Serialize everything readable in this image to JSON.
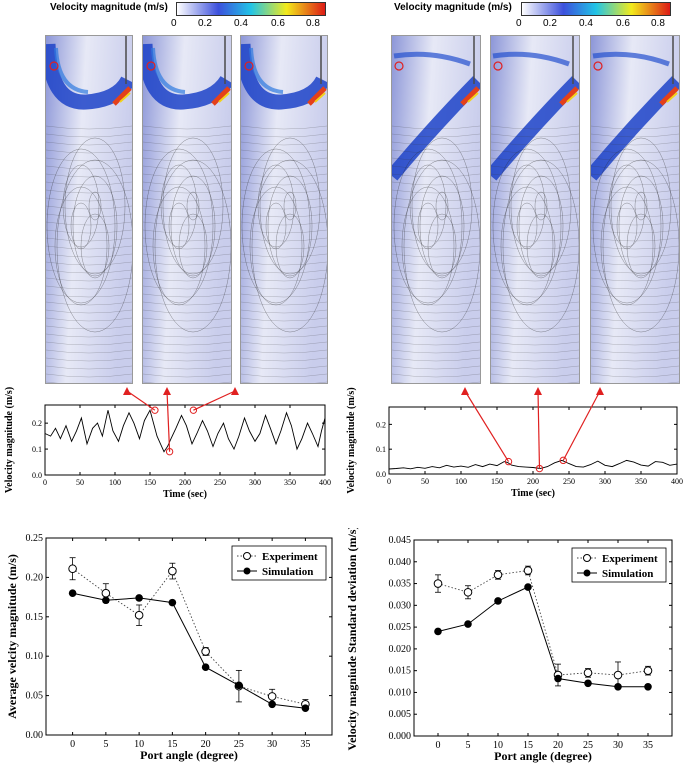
{
  "colorbars": [
    {
      "title": "Velocity magnitude (m/s)",
      "ticks": [
        "0",
        "0.2",
        "0.4",
        "0.6",
        "0.8"
      ],
      "stops": [
        "#ffffff",
        "#3c50dc",
        "#22c4e6",
        "#f2ea1c",
        "#dd1b16"
      ]
    },
    {
      "title": "Velocity magnitude (m/s)",
      "ticks": [
        "0",
        "0.2",
        "0.4",
        "0.6",
        "0.8"
      ],
      "stops": [
        "#ffffff",
        "#3c50dc",
        "#22c4e6",
        "#f2ea1c",
        "#dd1b16"
      ]
    }
  ],
  "chart_data": [
    {
      "type": "line",
      "xlabel": "Time (sec)",
      "ylabel": "Velocity magnitude (m/s)",
      "xlim": [
        0,
        400
      ],
      "ylim": [
        0,
        0.27
      ],
      "xticks": [
        "0",
        "50",
        "100",
        "150",
        "200",
        "250",
        "300",
        "350",
        "400"
      ],
      "yticks": [
        "0.0",
        "0.1",
        "0.2"
      ],
      "x": [
        0,
        8,
        15,
        22,
        30,
        38,
        45,
        52,
        60,
        68,
        75,
        82,
        90,
        97,
        105,
        112,
        120,
        127,
        135,
        142,
        150,
        155,
        160,
        165,
        170,
        175,
        180,
        187,
        195,
        202,
        210,
        217,
        225,
        232,
        240,
        247,
        255,
        262,
        270,
        277,
        285,
        292,
        300,
        307,
        315,
        322,
        330,
        337,
        345,
        352,
        360,
        367,
        375,
        382,
        390,
        395,
        400
      ],
      "y": [
        0.16,
        0.15,
        0.18,
        0.14,
        0.19,
        0.13,
        0.17,
        0.22,
        0.12,
        0.18,
        0.2,
        0.15,
        0.25,
        0.17,
        0.13,
        0.19,
        0.24,
        0.2,
        0.14,
        0.21,
        0.25,
        0.2,
        0.15,
        0.12,
        0.09,
        0.11,
        0.14,
        0.18,
        0.23,
        0.19,
        0.12,
        0.16,
        0.21,
        0.17,
        0.11,
        0.16,
        0.2,
        0.14,
        0.1,
        0.15,
        0.22,
        0.17,
        0.13,
        0.16,
        0.23,
        0.18,
        0.12,
        0.17,
        0.24,
        0.19,
        0.1,
        0.14,
        0.2,
        0.16,
        0.11,
        0.17,
        0.22
      ],
      "markers": [
        {
          "x": 157,
          "y": 0.25
        },
        {
          "x": 178,
          "y": 0.09
        },
        {
          "x": 212,
          "y": 0.25
        }
      ]
    },
    {
      "type": "line",
      "xlabel": "Time (sec)",
      "ylabel": "Velocity magnitude (m/s)",
      "xlim": [
        0,
        400
      ],
      "ylim": [
        0,
        0.27
      ],
      "xticks": [
        "0",
        "50",
        "100",
        "150",
        "200",
        "250",
        "300",
        "350",
        "400"
      ],
      "yticks": [
        "0.0",
        "0.1",
        "0.2"
      ],
      "x": [
        0,
        10,
        20,
        30,
        40,
        50,
        60,
        70,
        80,
        90,
        100,
        110,
        120,
        130,
        140,
        150,
        160,
        165,
        170,
        180,
        190,
        200,
        210,
        220,
        230,
        240,
        250,
        260,
        270,
        280,
        290,
        300,
        310,
        320,
        330,
        340,
        350,
        360,
        370,
        380,
        390,
        400
      ],
      "y": [
        0.02,
        0.022,
        0.025,
        0.021,
        0.027,
        0.023,
        0.03,
        0.025,
        0.035,
        0.028,
        0.032,
        0.027,
        0.038,
        0.03,
        0.04,
        0.034,
        0.05,
        0.046,
        0.036,
        0.03,
        0.028,
        0.026,
        0.022,
        0.03,
        0.045,
        0.055,
        0.042,
        0.03,
        0.028,
        0.038,
        0.052,
        0.035,
        0.03,
        0.042,
        0.055,
        0.048,
        0.036,
        0.032,
        0.05,
        0.047,
        0.035,
        0.04
      ],
      "markers": [
        {
          "x": 166,
          "y": 0.05
        },
        {
          "x": 209,
          "y": 0.022
        },
        {
          "x": 242,
          "y": 0.055
        }
      ]
    },
    {
      "type": "line",
      "xlabel": "Port angle (degree)",
      "ylabel": "Average velcity magnitude (m/s)",
      "xlim": [
        -4,
        39
      ],
      "ylim": [
        0,
        0.25
      ],
      "xticks": [
        "0",
        "5",
        "10",
        "15",
        "20",
        "25",
        "30",
        "35"
      ],
      "yticks": [
        "0.00",
        "0.05",
        "0.10",
        "0.15",
        "0.20",
        "0.25"
      ],
      "legend_position": "top-right",
      "categories": [
        0,
        5,
        10,
        15,
        20,
        25,
        30,
        35
      ],
      "series": [
        {
          "name": "Experiment",
          "values": [
            0.211,
            0.18,
            0.152,
            0.208,
            0.106,
            0.062,
            0.049,
            0.039
          ],
          "error": [
            0.014,
            0.012,
            0.013,
            0.01,
            0.005,
            0.02,
            0.009,
            0.006
          ]
        },
        {
          "name": "Simulation",
          "values": [
            0.18,
            0.171,
            0.174,
            0.168,
            0.086,
            0.063,
            0.039,
            0.034
          ]
        }
      ]
    },
    {
      "type": "line",
      "xlabel": "Port angle (degree)",
      "ylabel": "Velocity magniude Standard deviation (m/s)",
      "xlim": [
        -4,
        39
      ],
      "ylim": [
        0,
        0.045
      ],
      "xticks": [
        "0",
        "5",
        "10",
        "15",
        "20",
        "25",
        "30",
        "35"
      ],
      "yticks": [
        "0.000",
        "0.005",
        "0.010",
        "0.015",
        "0.020",
        "0.025",
        "0.030",
        "0.035",
        "0.040",
        "0.045"
      ],
      "legend_position": "top-right",
      "categories": [
        0,
        5,
        10,
        15,
        20,
        25,
        30,
        35
      ],
      "series": [
        {
          "name": "Experiment",
          "values": [
            0.035,
            0.033,
            0.037,
            0.038,
            0.014,
            0.0145,
            0.014,
            0.015
          ],
          "error": [
            0.002,
            0.0015,
            0.001,
            0.001,
            0.0025,
            0.001,
            0.003,
            0.001
          ]
        },
        {
          "name": "Simulation",
          "values": [
            0.024,
            0.0257,
            0.031,
            0.0342,
            0.0132,
            0.0121,
            0.0113,
            0.0113
          ]
        }
      ]
    }
  ]
}
